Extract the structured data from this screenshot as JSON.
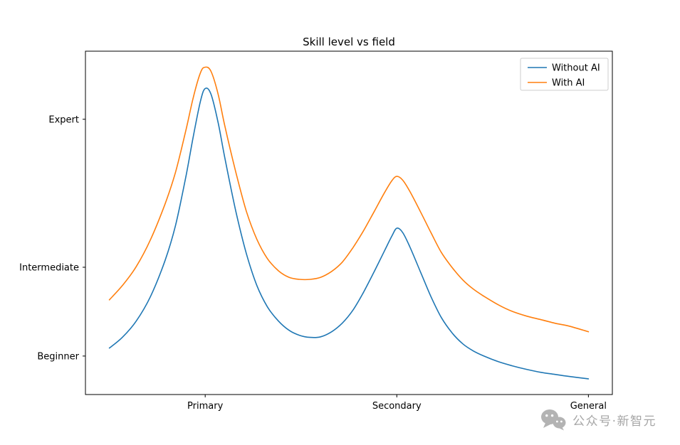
{
  "watermark": {
    "text": "公众号·新智元",
    "icon": "wechat-icon",
    "color": "#b3b3b3",
    "text_color": "#a6a6a6"
  },
  "frame": {
    "stroke": "#000000"
  },
  "chart_data": {
    "type": "line",
    "title": "Skill level vs field",
    "xlabel": "",
    "ylabel": "",
    "grid": false,
    "legend_position": "upper right",
    "legend_border_color": "#cccccc",
    "xlim": [
      -0.5,
      10.5
    ],
    "ylim": [
      0.07,
      1.23
    ],
    "x_ticks": [
      {
        "value": 2,
        "label": "Primary"
      },
      {
        "value": 6,
        "label": "Secondary"
      },
      {
        "value": 10,
        "label": "General"
      }
    ],
    "y_ticks": [
      {
        "value": 0.2,
        "label": "Beginner"
      },
      {
        "value": 0.5,
        "label": "Intermediate"
      },
      {
        "value": 1.0,
        "label": "Expert"
      }
    ],
    "x": [
      0,
      0.27,
      0.56,
      0.86,
      1.16,
      1.38,
      1.6,
      1.75,
      1.9,
      2.0,
      2.12,
      2.27,
      2.41,
      2.64,
      2.86,
      3.08,
      3.3,
      3.53,
      3.75,
      3.97,
      4.19,
      4.41,
      4.64,
      4.86,
      5.08,
      5.3,
      5.53,
      5.75,
      5.9,
      6.0,
      6.12,
      6.27,
      6.49,
      6.71,
      6.93,
      7.16,
      7.38,
      7.6,
      7.82,
      8.12,
      8.41,
      8.71,
      9.01,
      9.3,
      9.6,
      10.0
    ],
    "series": [
      {
        "name": "Without AI",
        "color": "#1f77b4",
        "y": [
          0.227,
          0.263,
          0.318,
          0.402,
          0.522,
          0.641,
          0.809,
          0.941,
          1.061,
          1.104,
          1.085,
          0.989,
          0.869,
          0.689,
          0.546,
          0.438,
          0.366,
          0.318,
          0.287,
          0.27,
          0.263,
          0.265,
          0.282,
          0.311,
          0.354,
          0.414,
          0.486,
          0.558,
          0.606,
          0.632,
          0.618,
          0.57,
          0.486,
          0.402,
          0.33,
          0.277,
          0.241,
          0.217,
          0.2,
          0.181,
          0.167,
          0.155,
          0.145,
          0.138,
          0.131,
          0.123
        ]
      },
      {
        "name": "With AI",
        "color": "#ff7f0e",
        "y": [
          0.39,
          0.438,
          0.502,
          0.594,
          0.713,
          0.821,
          0.965,
          1.073,
          1.157,
          1.176,
          1.162,
          1.085,
          0.977,
          0.821,
          0.689,
          0.594,
          0.529,
          0.488,
          0.466,
          0.459,
          0.459,
          0.466,
          0.486,
          0.517,
          0.565,
          0.622,
          0.689,
          0.754,
          0.793,
          0.807,
          0.795,
          0.757,
          0.689,
          0.618,
          0.55,
          0.498,
          0.457,
          0.426,
          0.402,
          0.373,
          0.351,
          0.335,
          0.323,
          0.311,
          0.301,
          0.282
        ]
      }
    ]
  }
}
